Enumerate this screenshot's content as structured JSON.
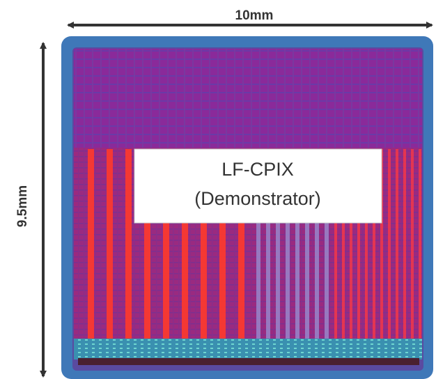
{
  "dimensions": {
    "width": "10mm",
    "height": "9.5mm"
  },
  "label": {
    "lines": [
      "LF-CPIX",
      "(Demonstrator)"
    ]
  }
}
